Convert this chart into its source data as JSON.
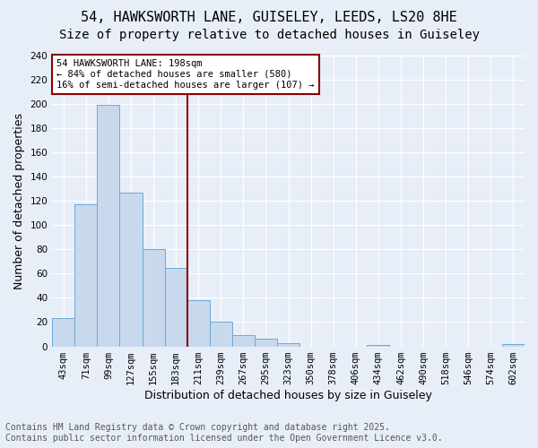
{
  "title_line1": "54, HAWKSWORTH LANE, GUISELEY, LEEDS, LS20 8HE",
  "title_line2": "Size of property relative to detached houses in Guiseley",
  "xlabel": "Distribution of detached houses by size in Guiseley",
  "ylabel": "Number of detached properties",
  "categories": [
    "43sqm",
    "71sqm",
    "99sqm",
    "127sqm",
    "155sqm",
    "183sqm",
    "211sqm",
    "239sqm",
    "267sqm",
    "295sqm",
    "323sqm",
    "350sqm",
    "378sqm",
    "406sqm",
    "434sqm",
    "462sqm",
    "490sqm",
    "518sqm",
    "546sqm",
    "574sqm",
    "602sqm"
  ],
  "values": [
    23,
    117,
    199,
    127,
    80,
    65,
    38,
    20,
    9,
    6,
    3,
    0,
    0,
    0,
    1,
    0,
    0,
    0,
    0,
    0,
    2
  ],
  "bar_color": "#c8d9ee",
  "bar_edge_color": "#6aaad4",
  "vline_x": 5.5,
  "vline_color": "#8b0000",
  "annotation_text": "54 HAWKSWORTH LANE: 198sqm\n← 84% of detached houses are smaller (580)\n16% of semi-detached houses are larger (107) →",
  "annotation_box_color": "#ffffff",
  "annotation_box_edge_color": "#8b0000",
  "ylim": [
    0,
    240
  ],
  "yticks": [
    0,
    20,
    40,
    60,
    80,
    100,
    120,
    140,
    160,
    180,
    200,
    220,
    240
  ],
  "footer_line1": "Contains HM Land Registry data © Crown copyright and database right 2025.",
  "footer_line2": "Contains public sector information licensed under the Open Government Licence v3.0.",
  "background_color": "#e8eef8",
  "plot_bg_color": "#e8eef8",
  "grid_color": "#ffffff",
  "title_fontsize": 11,
  "subtitle_fontsize": 10,
  "axis_label_fontsize": 9,
  "tick_fontsize": 7.5,
  "annotation_fontsize": 7.5,
  "footer_fontsize": 7
}
